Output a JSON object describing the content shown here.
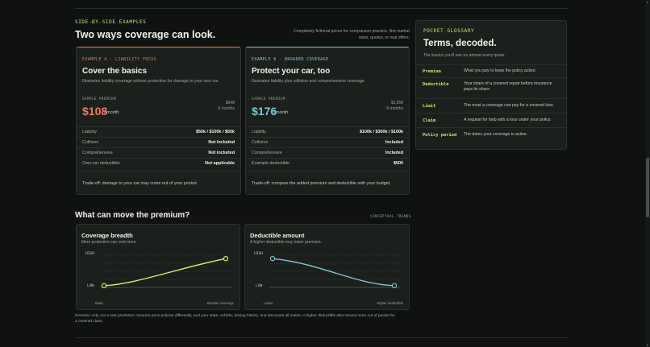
{
  "comparison": {
    "eyebrow": "SIDE-BY-SIDE EXAMPLES",
    "title": "Two ways coverage can look.",
    "note_line1": "Completely fictional prices for comparison practice. Not market",
    "note_line2": "rates, quotes, or real offers.",
    "cards": [
      {
        "tag": "EXAMPLE A · LIABILITY FOCUS",
        "title": "Cover the basics",
        "subtitle": "Illustrates liability coverage without protection for damage to your own car.",
        "premium_label": "SAMPLE PREMIUM",
        "price": "$108",
        "per": "/ month",
        "total": "$648",
        "total_period": "6 months",
        "rows": [
          {
            "k": "Liability",
            "v": "$50k / $100k / $50k"
          },
          {
            "k": "Collision",
            "v": "Not included"
          },
          {
            "k": "Comprehensive",
            "v": "Not included"
          },
          {
            "k": "Own-car deductible",
            "v": "Not applicable"
          }
        ],
        "tradeoff": "Trade-off: damage to your car may come out of your pocket."
      },
      {
        "tag": "EXAMPLE B · BROADER COVERAGE",
        "title": "Protect your car, too",
        "subtitle": "Illustrates liability plus collision and comprehensive coverage.",
        "premium_label": "SAMPLE PREMIUM",
        "price": "$176",
        "per": "/ month",
        "total": "$1,056",
        "total_period": "6 months",
        "rows": [
          {
            "k": "Liability",
            "v": "$100k / $300k / $100k"
          },
          {
            "k": "Collision",
            "v": "Included"
          },
          {
            "k": "Comprehensive",
            "v": "Included"
          },
          {
            "k": "Example deductible",
            "v": "$500"
          }
        ],
        "tradeoff": "Trade-off: compare the added premium and deductible with your budget."
      }
    ]
  },
  "glossary": {
    "eyebrow": "POCKET GLOSSARY",
    "title": "Terms, decoded.",
    "subtitle": "The basics you'll see on almost every quote.",
    "items": [
      {
        "term": "Premium",
        "def": "What you pay to keep the policy active."
      },
      {
        "term": "Deductible",
        "def": "Your share of a covered repair before insurance pays its share."
      },
      {
        "term": "Limit",
        "def": "The most a coverage can pay for a covered loss."
      },
      {
        "term": "Claim",
        "def": "A request for help with a loss under your policy."
      },
      {
        "term": "Policy period",
        "def": "The dates your coverage is active."
      }
    ]
  },
  "premium": {
    "title": "What can move the premium?",
    "tag": "CONCEPTUAL TRENDS",
    "footnote_line1": "Direction only, not a rate prediction: insurers price policies differently, and your state, vehicle, driving history, and discounts all matter. A higher deductible also means more out of pocket for",
    "footnote_line2": "a covered claim.",
    "charts": [
      {
        "title": "Coverage breadth",
        "subtitle": "More protection can cost more.",
        "y_high": "HIGH",
        "y_low": "LOW",
        "x_start": "Basic",
        "x_end": "Broader coverage",
        "color": "#d4f06a"
      },
      {
        "title": "Deductible amount",
        "subtitle": "A higher deductible may lower premium.",
        "y_high": "HIGH",
        "y_low": "LOW",
        "x_start": "Lower",
        "x_end": "Higher deductible",
        "color": "#7fc3d6"
      }
    ]
  },
  "chart_data": [
    {
      "type": "line",
      "title": "Coverage breadth",
      "xlabel": "",
      "ylabel": "",
      "x": [
        "Basic",
        "Broader coverage"
      ],
      "series": [
        {
          "values": [
            0.1,
            0.9
          ]
        }
      ],
      "ylim": [
        "LOW",
        "HIGH"
      ]
    },
    {
      "type": "line",
      "title": "Deductible amount",
      "xlabel": "",
      "ylabel": "",
      "x": [
        "Lower",
        "Higher deductible"
      ],
      "series": [
        {
          "values": [
            0.9,
            0.1
          ]
        }
      ],
      "ylim": [
        "LOW",
        "HIGH"
      ]
    }
  ],
  "colors": {
    "accent": "#c8e86a",
    "card_a": "#f07a5a",
    "card_b": "#7fc3d6"
  }
}
